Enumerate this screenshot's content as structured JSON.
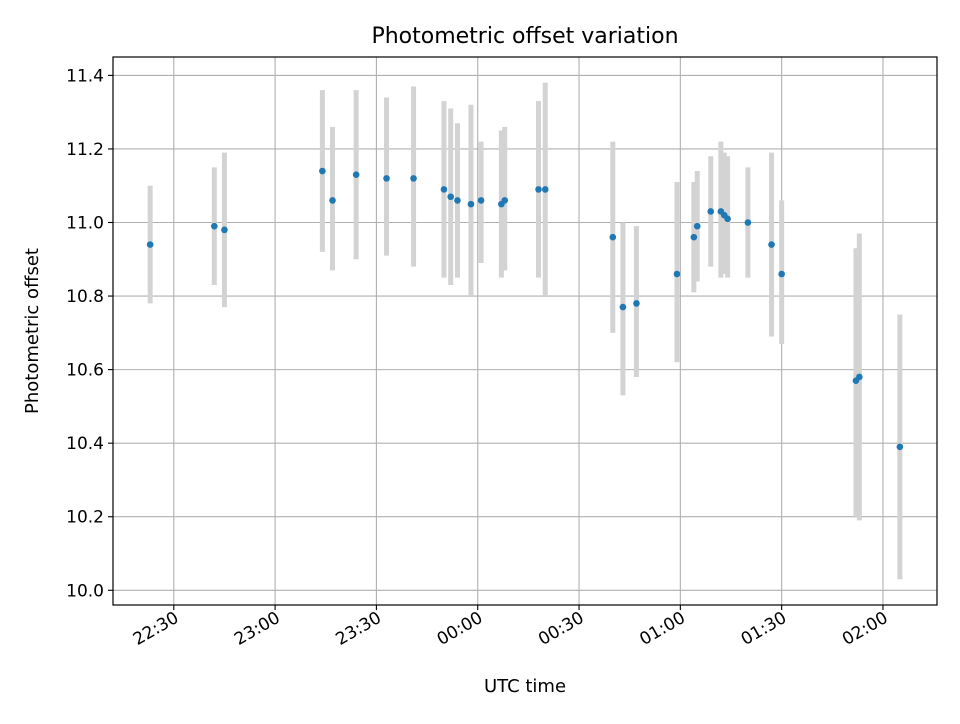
{
  "chart_data": {
    "type": "scatter",
    "title": "Photometric offset variation",
    "xlabel": "UTC time",
    "ylabel": "Photometric offset",
    "x_ticks": [
      "22:30",
      "23:00",
      "23:30",
      "00:00",
      "00:30",
      "01:00",
      "01:30",
      "02:00"
    ],
    "y_ticks": [
      "10.0",
      "10.2",
      "10.4",
      "10.6",
      "10.8",
      "11.0",
      "11.2",
      "11.4"
    ],
    "xlim": [
      "22:12",
      "02:16"
    ],
    "ylim": [
      9.96,
      11.45
    ],
    "grid": true,
    "error_bar_color": "#d3d3d3",
    "point_color": "#1f77b4",
    "points": [
      {
        "time": "22:23",
        "y": 10.94,
        "lo": 10.78,
        "hi": 11.1
      },
      {
        "time": "22:42",
        "y": 10.99,
        "lo": 10.83,
        "hi": 11.15
      },
      {
        "time": "22:45",
        "y": 10.98,
        "lo": 10.77,
        "hi": 11.19
      },
      {
        "time": "23:14",
        "y": 11.14,
        "lo": 10.92,
        "hi": 11.36
      },
      {
        "time": "23:17",
        "y": 11.06,
        "lo": 10.87,
        "hi": 11.26
      },
      {
        "time": "23:24",
        "y": 11.13,
        "lo": 10.9,
        "hi": 11.36
      },
      {
        "time": "23:33",
        "y": 11.12,
        "lo": 10.91,
        "hi": 11.34
      },
      {
        "time": "23:41",
        "y": 11.12,
        "lo": 10.88,
        "hi": 11.37
      },
      {
        "time": "23:50",
        "y": 11.09,
        "lo": 10.85,
        "hi": 11.33
      },
      {
        "time": "23:52",
        "y": 11.07,
        "lo": 10.83,
        "hi": 11.31
      },
      {
        "time": "23:54",
        "y": 11.06,
        "lo": 10.85,
        "hi": 11.27
      },
      {
        "time": "23:58",
        "y": 11.05,
        "lo": 10.8,
        "hi": 11.32
      },
      {
        "time": "00:01",
        "y": 11.06,
        "lo": 10.89,
        "hi": 11.22
      },
      {
        "time": "00:07",
        "y": 11.05,
        "lo": 10.85,
        "hi": 11.25
      },
      {
        "time": "00:08",
        "y": 11.06,
        "lo": 10.87,
        "hi": 11.26
      },
      {
        "time": "00:18",
        "y": 11.09,
        "lo": 10.85,
        "hi": 11.33
      },
      {
        "time": "00:20",
        "y": 11.09,
        "lo": 10.8,
        "hi": 11.38
      },
      {
        "time": "00:40",
        "y": 10.96,
        "lo": 10.7,
        "hi": 11.22
      },
      {
        "time": "00:43",
        "y": 10.77,
        "lo": 10.53,
        "hi": 11.0
      },
      {
        "time": "00:47",
        "y": 10.78,
        "lo": 10.58,
        "hi": 10.99
      },
      {
        "time": "00:59",
        "y": 10.86,
        "lo": 10.62,
        "hi": 11.11
      },
      {
        "time": "01:04",
        "y": 10.96,
        "lo": 10.81,
        "hi": 11.11
      },
      {
        "time": "01:05",
        "y": 10.99,
        "lo": 10.84,
        "hi": 11.14
      },
      {
        "time": "01:09",
        "y": 11.03,
        "lo": 10.88,
        "hi": 11.18
      },
      {
        "time": "01:12",
        "y": 11.03,
        "lo": 10.85,
        "hi": 11.22
      },
      {
        "time": "01:13",
        "y": 11.02,
        "lo": 10.86,
        "hi": 11.19
      },
      {
        "time": "01:14",
        "y": 11.01,
        "lo": 10.85,
        "hi": 11.18
      },
      {
        "time": "01:20",
        "y": 11.0,
        "lo": 10.85,
        "hi": 11.15
      },
      {
        "time": "01:27",
        "y": 10.94,
        "lo": 10.69,
        "hi": 11.19
      },
      {
        "time": "01:30",
        "y": 10.86,
        "lo": 10.67,
        "hi": 11.06
      },
      {
        "time": "01:52",
        "y": 10.57,
        "lo": 10.2,
        "hi": 10.93
      },
      {
        "time": "01:53",
        "y": 10.58,
        "lo": 10.19,
        "hi": 10.97
      },
      {
        "time": "02:05",
        "y": 10.39,
        "lo": 10.03,
        "hi": 10.75
      }
    ]
  }
}
